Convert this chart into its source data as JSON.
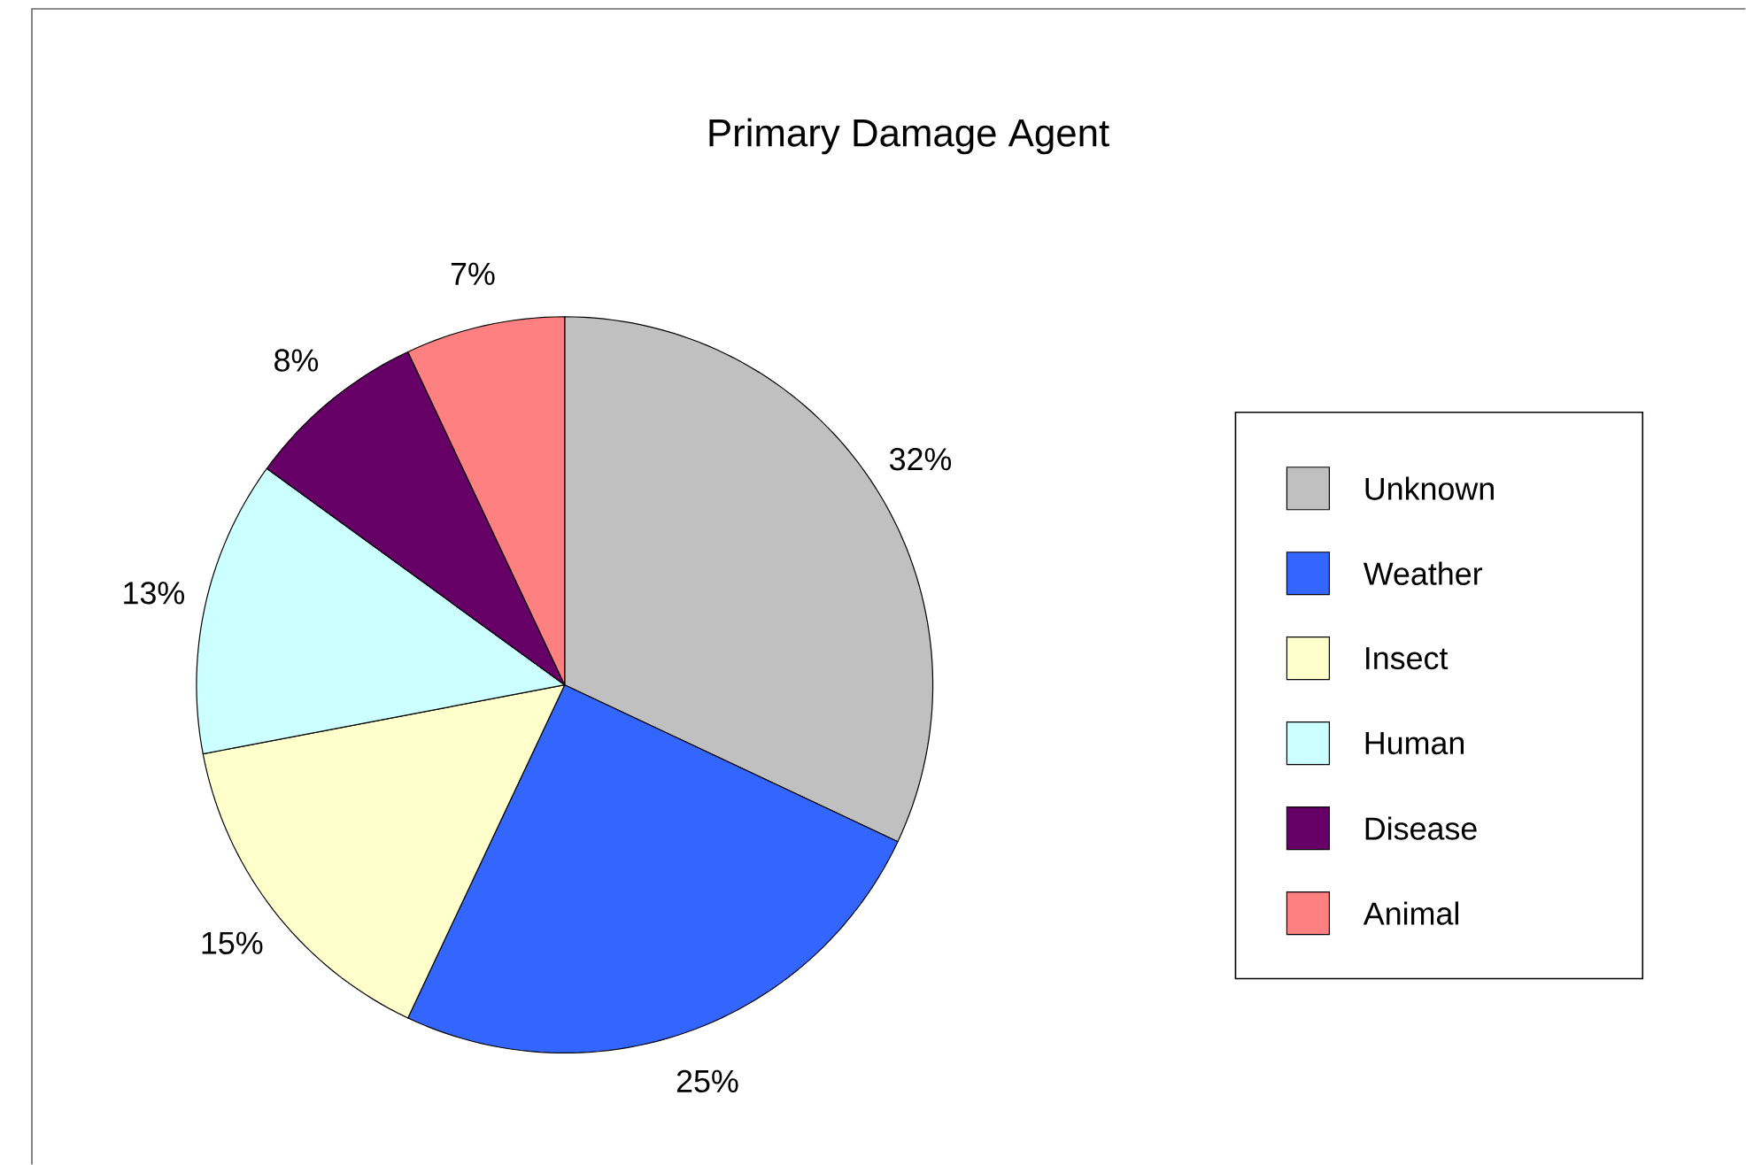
{
  "chart_data": {
    "type": "pie",
    "title": "Primary Damage Agent",
    "categories": [
      "Unknown",
      "Weather",
      "Insect",
      "Human",
      "Disease",
      "Animal"
    ],
    "values": [
      32,
      25,
      15,
      13,
      8,
      7
    ],
    "value_labels": [
      "32%",
      "25%",
      "15%",
      "13%",
      "8%",
      "7%"
    ],
    "colors": [
      "#c0c0c0",
      "#3366ff",
      "#ffffcc",
      "#ccffff",
      "#660066",
      "#ff8080"
    ],
    "legend": "right"
  }
}
